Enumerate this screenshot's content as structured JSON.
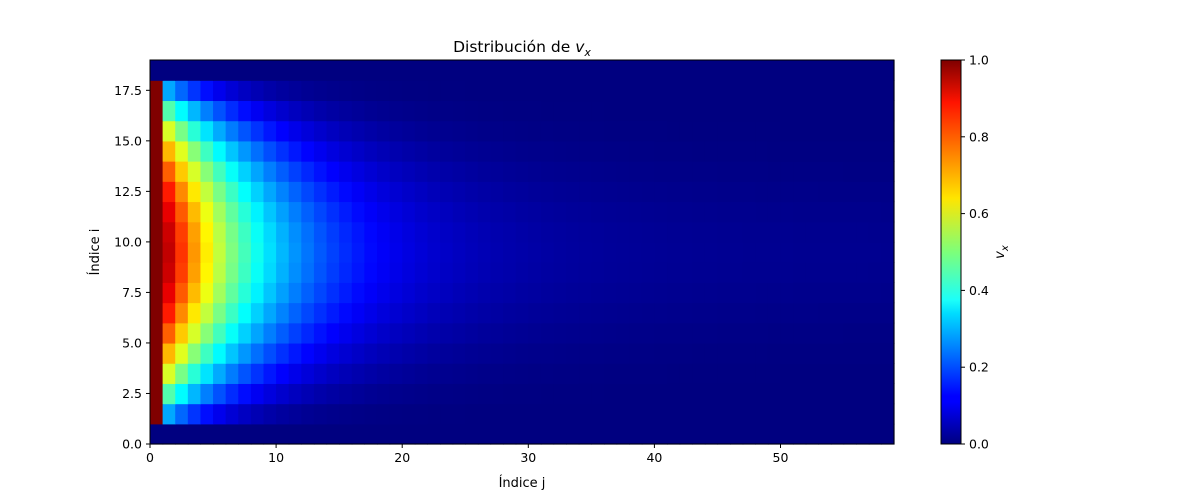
{
  "chart_data": {
    "type": "heatmap",
    "title_prefix": "Distribución de ",
    "title_var": "v",
    "title_sub": "x",
    "xlabel": "Índice j",
    "ylabel": "Índice i",
    "x_range": [
      0,
      59
    ],
    "y_range": [
      0,
      19
    ],
    "xticks": [
      0,
      10,
      20,
      30,
      40,
      50
    ],
    "xtick_labels": [
      "0",
      "10",
      "20",
      "30",
      "40",
      "50"
    ],
    "yticks": [
      0,
      2.5,
      5,
      7.5,
      10,
      12.5,
      15,
      17.5
    ],
    "ytick_labels": [
      "0.0",
      "2.5",
      "5.0",
      "7.5",
      "10.0",
      "12.5",
      "15.0",
      "17.5"
    ],
    "grid_shape": {
      "rows": 19,
      "cols": 59
    },
    "boundary": {
      "bottom_row_index": 0,
      "top_row_index": 18,
      "inlet_column_index": 0,
      "boundary_value": 0.0,
      "inlet_value": 1.0
    },
    "profile": {
      "description_values": "interior rows 1–17, columns 1–58 approximate a decaying developing profile",
      "sample_center_row_values": {
        "j1": 0.92,
        "j2": 0.85,
        "j3": 0.75,
        "j4": 0.62,
        "j5": 0.52,
        "j8": 0.35,
        "j12": 0.18,
        "j20": 0.07,
        "j30": 0.03,
        "j58": 0.01
      }
    },
    "colormap": "jet",
    "colorbar": {
      "label_var": "v",
      "label_sub": "x",
      "range": [
        0.0,
        1.0
      ],
      "ticks": [
        0.0,
        0.2,
        0.4,
        0.6,
        0.8,
        1.0
      ],
      "tick_labels": [
        "0.0",
        "0.2",
        "0.4",
        "0.6",
        "0.8",
        "1.0"
      ],
      "placement": "right"
    },
    "grid": false
  }
}
